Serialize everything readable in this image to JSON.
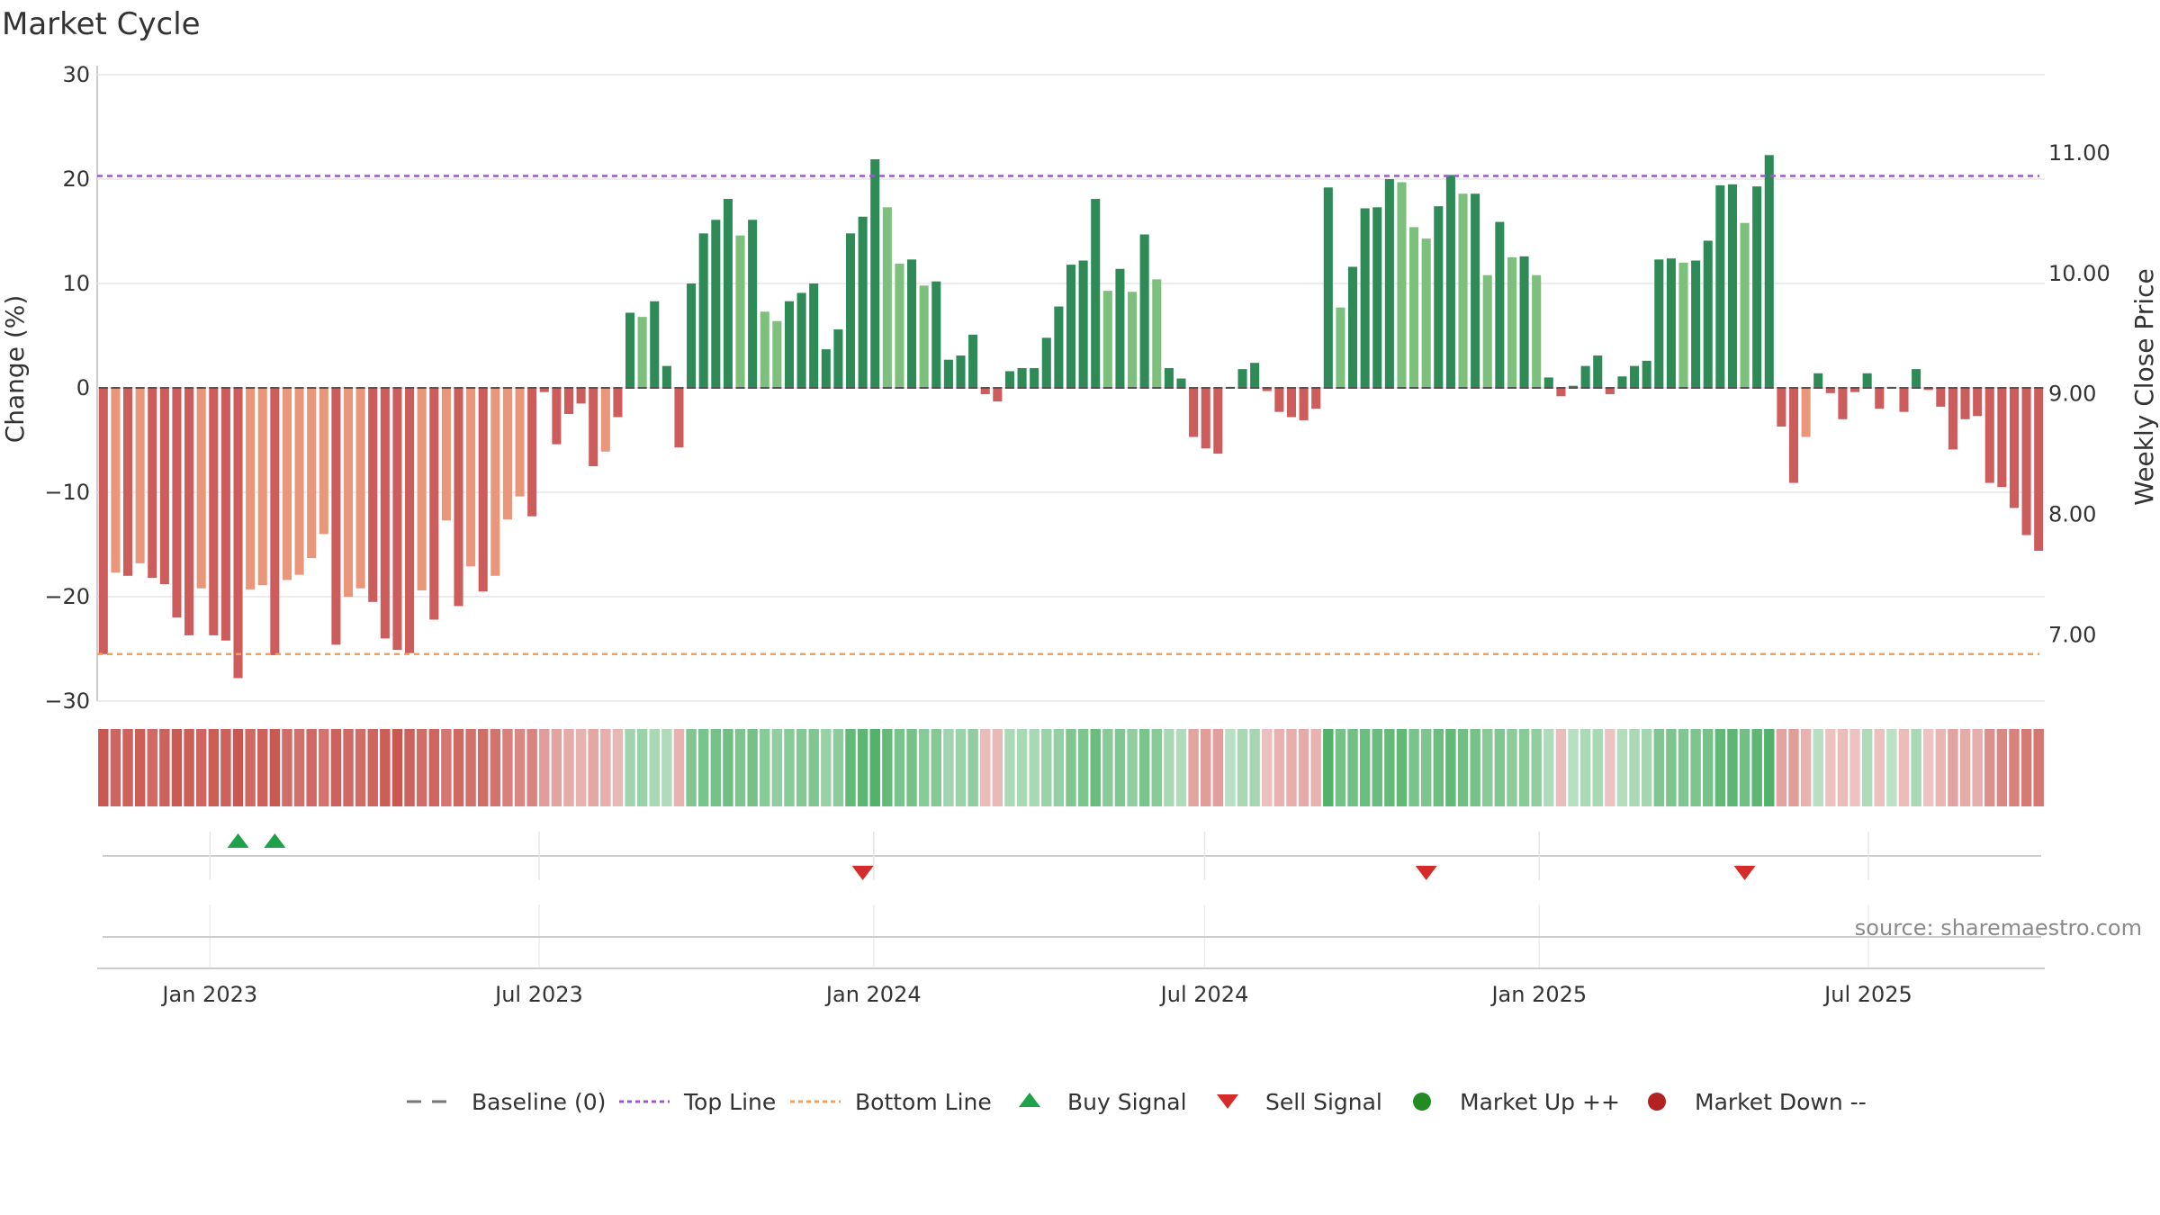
{
  "chart_data": {
    "type": "bar",
    "title": "Market Cycle",
    "ylabel": "Change (%)",
    "y2label": "Weekly Close Price",
    "source": "source: sharemaestro.com",
    "ylim": [
      -30,
      30
    ],
    "y2lim": [
      6.45,
      11.65
    ],
    "yticks": [
      30,
      20,
      10,
      0,
      -10,
      -20,
      -30
    ],
    "ytick_labels": [
      "30",
      "20",
      "10",
      "0",
      "−10",
      "−20",
      "−30"
    ],
    "y2ticks": [
      11,
      10,
      9,
      8,
      7
    ],
    "y2tick_labels": [
      "11.00",
      "10.00",
      "9.00",
      "8.00",
      "7.00"
    ],
    "top_line": 20.3,
    "bottom_line": -25.5,
    "x_start": "2022-10-31",
    "x_end": "2025-10-06",
    "xtick_dates": [
      "2023-01-01",
      "2023-07-01",
      "2024-01-01",
      "2024-07-01",
      "2025-01-01",
      "2025-07-01"
    ],
    "xtick_labels": [
      "Jan 2023",
      "Jul 2023",
      "Jan 2024",
      "Jul 2024",
      "Jan 2025",
      "Jul 2025"
    ],
    "weekly_change": [
      -25.5,
      -17.7,
      -18.0,
      -16.8,
      -18.2,
      -18.8,
      -22.0,
      -23.7,
      -19.2,
      -23.7,
      -24.2,
      -27.8,
      -19.3,
      -18.9,
      -25.6,
      -18.4,
      -17.9,
      -16.3,
      -14.0,
      -24.6,
      -20.0,
      -19.2,
      -20.5,
      -24.0,
      -25.1,
      -25.4,
      -19.4,
      -22.2,
      -12.7,
      -20.9,
      -17.1,
      -19.5,
      -18.0,
      -12.6,
      -10.4,
      -12.3,
      -0.4,
      -5.4,
      -2.5,
      -1.5,
      -7.5,
      -6.1,
      -2.8,
      7.2,
      6.8,
      8.3,
      2.1,
      -5.7,
      10.0,
      14.8,
      16.1,
      18.1,
      14.6,
      16.1,
      7.3,
      6.4,
      8.3,
      9.1,
      10.0,
      3.7,
      5.6,
      14.8,
      16.4,
      21.9,
      17.3,
      11.9,
      12.3,
      9.8,
      10.2,
      2.7,
      3.1,
      5.1,
      -0.6,
      -1.3,
      1.6,
      1.9,
      1.9,
      4.8,
      7.8,
      11.8,
      12.2,
      18.1,
      9.3,
      11.4,
      9.2,
      14.7,
      10.4,
      1.9,
      0.9,
      -4.7,
      -5.8,
      -6.3,
      0.1,
      1.8,
      2.4,
      -0.3,
      -2.3,
      -2.8,
      -3.1,
      -2.0,
      19.2,
      7.7,
      11.6,
      17.2,
      17.3,
      20.0,
      19.7,
      15.4,
      14.3,
      17.4,
      20.4,
      18.6,
      18.6,
      10.8,
      15.9,
      12.5,
      12.6,
      10.8,
      1.0,
      -0.8,
      0.2,
      2.1,
      3.1,
      -0.6,
      1.1,
      2.1,
      2.6,
      12.3,
      12.4,
      12.0,
      12.2,
      14.1,
      19.4,
      19.5,
      15.8,
      19.3,
      22.3,
      -3.7,
      -9.1,
      -4.7,
      1.4,
      -0.5,
      -3.0,
      -0.4,
      1.4,
      -2.0,
      0.1,
      -2.3,
      1.8,
      -0.2,
      -1.8,
      -5.9,
      -3.0,
      -2.7,
      -9.1,
      -9.5,
      -11.5,
      -14.1,
      -15.6
    ],
    "band_levels": [
      0.95,
      0.85,
      0.88,
      0.9,
      0.82,
      0.88,
      0.92,
      0.9,
      0.85,
      0.9,
      0.88,
      0.95,
      0.82,
      0.88,
      0.94,
      0.8,
      0.78,
      0.82,
      0.75,
      0.88,
      0.82,
      0.8,
      0.85,
      0.9,
      0.95,
      0.88,
      0.8,
      0.85,
      0.72,
      0.82,
      0.78,
      0.8,
      0.75,
      0.65,
      0.6,
      0.62,
      0.45,
      0.4,
      0.35,
      0.3,
      0.38,
      0.32,
      0.28,
      0.35,
      0.38,
      0.3,
      0.25,
      0.3,
      0.55,
      0.6,
      0.62,
      0.65,
      0.58,
      0.62,
      0.5,
      0.45,
      0.5,
      0.52,
      0.55,
      0.4,
      0.48,
      0.75,
      0.78,
      0.85,
      0.72,
      0.6,
      0.62,
      0.5,
      0.52,
      0.35,
      0.38,
      0.45,
      0.22,
      0.25,
      0.28,
      0.3,
      0.3,
      0.38,
      0.42,
      0.55,
      0.58,
      0.7,
      0.5,
      0.55,
      0.45,
      0.6,
      0.5,
      0.3,
      0.25,
      0.4,
      0.45,
      0.42,
      0.2,
      0.3,
      0.32,
      0.2,
      0.3,
      0.32,
      0.35,
      0.3,
      0.85,
      0.62,
      0.65,
      0.68,
      0.7,
      0.72,
      0.75,
      0.6,
      0.58,
      0.68,
      0.75,
      0.65,
      0.62,
      0.5,
      0.55,
      0.48,
      0.5,
      0.45,
      0.25,
      0.22,
      0.2,
      0.28,
      0.3,
      0.18,
      0.22,
      0.3,
      0.32,
      0.55,
      0.58,
      0.55,
      0.58,
      0.62,
      0.75,
      0.78,
      0.65,
      0.78,
      0.85,
      0.4,
      0.45,
      0.3,
      0.2,
      0.18,
      0.22,
      0.18,
      0.25,
      0.2,
      0.18,
      0.22,
      0.3,
      0.18,
      0.28,
      0.4,
      0.35,
      0.33,
      0.55,
      0.6,
      0.65,
      0.7,
      0.72
    ],
    "buy_signals": [
      11,
      14
    ],
    "sell_signals": [
      62,
      108,
      134
    ],
    "legend": [
      {
        "label": "Baseline (0)",
        "kind": "dash",
        "color": "#777777"
      },
      {
        "label": "Top Line",
        "kind": "dot",
        "color": "#9b59d0"
      },
      {
        "label": "Bottom Line",
        "kind": "dot",
        "color": "#f0a05a"
      },
      {
        "label": "Buy Signal",
        "kind": "up",
        "color": "#1fa14a"
      },
      {
        "label": "Sell Signal",
        "kind": "down",
        "color": "#d62b2b"
      },
      {
        "label": "Market Up ++",
        "kind": "circle",
        "color": "#228b22"
      },
      {
        "label": "Market Down --",
        "kind": "circle",
        "color": "#b22222"
      }
    ],
    "colors": {
      "up_strong": "#2e8b57",
      "up_light": "#7dbf7d",
      "down_strong": "#cd5c5c",
      "down_light": "#e9967a",
      "band_up": "#3aa655",
      "band_down": "#c8504a",
      "top_line": "#9b59d0",
      "bottom_line": "#f0a05a",
      "buy": "#1fa14a",
      "sell": "#d62b2b"
    }
  }
}
